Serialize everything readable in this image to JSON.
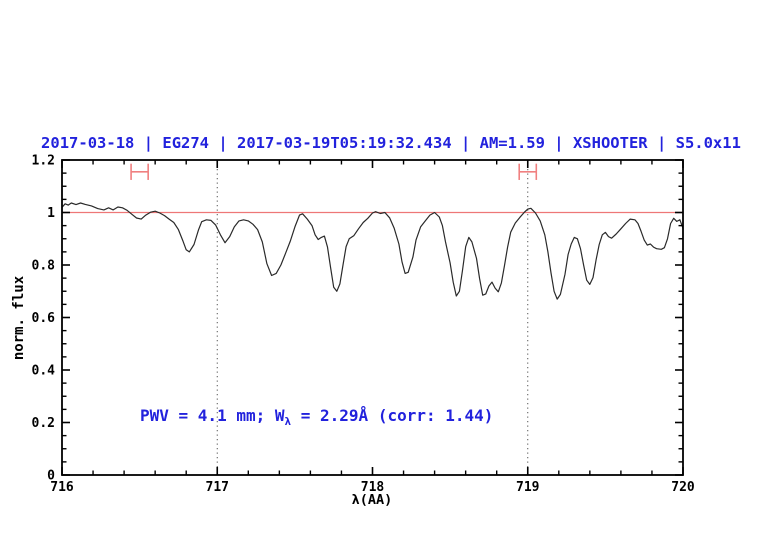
{
  "figure": {
    "title": "2017-03-18 | EG274 | 2017-03-19T05:19:32.434 | AM=1.59 | XSHOOTER | S5.0x11",
    "annotation": {
      "prefix": "PWV = 4.1 mm; W",
      "subscript": "λ",
      "suffix": " = 2.29Å (corr: 1.44)"
    }
  },
  "colors": {
    "title_blue": "#2222dd",
    "annotation_blue": "#2222dd",
    "reference_red": "#ee7777",
    "marker_red": "#f08080",
    "spectrum": "#2a2a2a",
    "frame": "#000000",
    "dotted_line": "#555555",
    "tick_label": "#000000"
  },
  "chart_data": {
    "type": "line",
    "title": "2017-03-18 | EG274 | 2017-03-19T05:19:32.434 | AM=1.59 | XSHOOTER | S5.0x11",
    "xlabel": "λ(AA)",
    "ylabel": "norm. flux",
    "xlim": [
      716,
      720
    ],
    "ylim": [
      0,
      1.2
    ],
    "grid": "off",
    "legend": "none",
    "x_ticks": {
      "major": [
        {
          "v": 716,
          "label": "716"
        },
        {
          "v": 717,
          "label": "717"
        },
        {
          "v": 718,
          "label": "718"
        },
        {
          "v": 719,
          "label": "719"
        },
        {
          "v": 720,
          "label": "720"
        }
      ],
      "minor_step": 0.2
    },
    "y_ticks": {
      "major": [
        {
          "v": 0,
          "label": "0"
        },
        {
          "v": 0.2,
          "label": "0.2"
        },
        {
          "v": 0.4,
          "label": "0.4"
        },
        {
          "v": 0.6,
          "label": "0.6"
        },
        {
          "v": 0.8,
          "label": "0.8"
        },
        {
          "v": 1,
          "label": "1"
        },
        {
          "v": 1.2,
          "label": "1.2"
        }
      ],
      "minor_step": 0.05
    },
    "reference_lines": {
      "horizontal": [
        {
          "y": 1.0
        }
      ],
      "vertical_dotted": [
        {
          "x": 717
        },
        {
          "x": 719
        }
      ]
    },
    "range_markers": [
      {
        "x_center": 716.5,
        "x_half_width": 0.055,
        "y": 1.155,
        "cap_half_height": 0.031
      },
      {
        "x_center": 719.0,
        "x_half_width": 0.055,
        "y": 1.155,
        "cap_half_height": 0.031
      }
    ],
    "annotation_text": "PWV = 4.1 mm; Wλ = 2.29Å (corr: 1.44)",
    "series": [
      {
        "name": "normalized telluric spectrum",
        "points": [
          [
            716.0,
            1.02
          ],
          [
            716.02,
            1.033
          ],
          [
            716.04,
            1.028
          ],
          [
            716.06,
            1.036
          ],
          [
            716.09,
            1.03
          ],
          [
            716.12,
            1.036
          ],
          [
            716.15,
            1.031
          ],
          [
            716.19,
            1.025
          ],
          [
            716.23,
            1.015
          ],
          [
            716.27,
            1.01
          ],
          [
            716.3,
            1.018
          ],
          [
            716.33,
            1.01
          ],
          [
            716.36,
            1.021
          ],
          [
            716.39,
            1.018
          ],
          [
            716.42,
            1.008
          ],
          [
            716.45,
            0.993
          ],
          [
            716.48,
            0.979
          ],
          [
            716.51,
            0.975
          ],
          [
            716.54,
            0.99
          ],
          [
            716.57,
            1.001
          ],
          [
            716.6,
            1.005
          ],
          [
            716.63,
            0.998
          ],
          [
            716.66,
            0.988
          ],
          [
            716.69,
            0.975
          ],
          [
            716.72,
            0.962
          ],
          [
            716.75,
            0.935
          ],
          [
            716.78,
            0.89
          ],
          [
            716.8,
            0.858
          ],
          [
            716.82,
            0.85
          ],
          [
            716.85,
            0.878
          ],
          [
            716.88,
            0.935
          ],
          [
            716.9,
            0.965
          ],
          [
            716.93,
            0.972
          ],
          [
            716.96,
            0.97
          ],
          [
            716.99,
            0.952
          ],
          [
            717.02,
            0.915
          ],
          [
            717.05,
            0.885
          ],
          [
            717.08,
            0.908
          ],
          [
            717.11,
            0.945
          ],
          [
            717.14,
            0.968
          ],
          [
            717.17,
            0.972
          ],
          [
            717.2,
            0.968
          ],
          [
            717.23,
            0.955
          ],
          [
            717.26,
            0.935
          ],
          [
            717.29,
            0.888
          ],
          [
            717.32,
            0.805
          ],
          [
            717.35,
            0.76
          ],
          [
            717.38,
            0.768
          ],
          [
            717.41,
            0.8
          ],
          [
            717.44,
            0.845
          ],
          [
            717.47,
            0.89
          ],
          [
            717.5,
            0.945
          ],
          [
            717.53,
            0.99
          ],
          [
            717.55,
            0.995
          ],
          [
            717.58,
            0.975
          ],
          [
            717.61,
            0.95
          ],
          [
            717.63,
            0.915
          ],
          [
            717.65,
            0.897
          ],
          [
            717.67,
            0.905
          ],
          [
            717.69,
            0.91
          ],
          [
            717.71,
            0.868
          ],
          [
            717.73,
            0.79
          ],
          [
            717.75,
            0.715
          ],
          [
            717.77,
            0.7
          ],
          [
            717.79,
            0.728
          ],
          [
            717.81,
            0.8
          ],
          [
            717.83,
            0.87
          ],
          [
            717.85,
            0.9
          ],
          [
            717.88,
            0.912
          ],
          [
            717.91,
            0.938
          ],
          [
            717.94,
            0.962
          ],
          [
            717.97,
            0.978
          ],
          [
            718.0,
            0.998
          ],
          [
            718.02,
            1.003
          ],
          [
            718.05,
            0.996
          ],
          [
            718.08,
            1.0
          ],
          [
            718.11,
            0.98
          ],
          [
            718.14,
            0.94
          ],
          [
            718.17,
            0.88
          ],
          [
            718.19,
            0.812
          ],
          [
            718.21,
            0.768
          ],
          [
            718.23,
            0.772
          ],
          [
            718.26,
            0.83
          ],
          [
            718.28,
            0.895
          ],
          [
            718.31,
            0.945
          ],
          [
            718.34,
            0.968
          ],
          [
            718.37,
            0.99
          ],
          [
            718.4,
            1.0
          ],
          [
            718.43,
            0.983
          ],
          [
            718.45,
            0.95
          ],
          [
            718.47,
            0.888
          ],
          [
            718.5,
            0.808
          ],
          [
            718.52,
            0.735
          ],
          [
            718.54,
            0.682
          ],
          [
            718.56,
            0.7
          ],
          [
            718.58,
            0.78
          ],
          [
            718.6,
            0.87
          ],
          [
            718.62,
            0.905
          ],
          [
            718.64,
            0.888
          ],
          [
            718.67,
            0.825
          ],
          [
            718.69,
            0.748
          ],
          [
            718.71,
            0.685
          ],
          [
            718.73,
            0.69
          ],
          [
            718.75,
            0.72
          ],
          [
            718.77,
            0.735
          ],
          [
            718.79,
            0.712
          ],
          [
            718.81,
            0.698
          ],
          [
            718.83,
            0.732
          ],
          [
            718.85,
            0.798
          ],
          [
            718.87,
            0.868
          ],
          [
            718.89,
            0.925
          ],
          [
            718.92,
            0.96
          ],
          [
            718.95,
            0.982
          ],
          [
            718.98,
            1.002
          ],
          [
            719.0,
            1.013
          ],
          [
            719.02,
            1.016
          ],
          [
            719.05,
            0.998
          ],
          [
            719.08,
            0.968
          ],
          [
            719.11,
            0.915
          ],
          [
            719.13,
            0.85
          ],
          [
            719.15,
            0.77
          ],
          [
            719.17,
            0.7
          ],
          [
            719.19,
            0.67
          ],
          [
            719.21,
            0.688
          ],
          [
            719.24,
            0.765
          ],
          [
            719.26,
            0.84
          ],
          [
            719.28,
            0.88
          ],
          [
            719.3,
            0.905
          ],
          [
            719.32,
            0.9
          ],
          [
            719.34,
            0.862
          ],
          [
            719.36,
            0.8
          ],
          [
            719.38,
            0.742
          ],
          [
            719.4,
            0.726
          ],
          [
            719.42,
            0.752
          ],
          [
            719.44,
            0.82
          ],
          [
            719.46,
            0.878
          ],
          [
            719.48,
            0.915
          ],
          [
            719.5,
            0.924
          ],
          [
            719.52,
            0.908
          ],
          [
            719.54,
            0.902
          ],
          [
            719.57,
            0.918
          ],
          [
            719.6,
            0.938
          ],
          [
            719.63,
            0.958
          ],
          [
            719.66,
            0.975
          ],
          [
            719.69,
            0.972
          ],
          [
            719.71,
            0.958
          ],
          [
            719.73,
            0.928
          ],
          [
            719.75,
            0.895
          ],
          [
            719.77,
            0.876
          ],
          [
            719.79,
            0.88
          ],
          [
            719.81,
            0.868
          ],
          [
            719.83,
            0.862
          ],
          [
            719.86,
            0.86
          ],
          [
            719.88,
            0.866
          ],
          [
            719.9,
            0.9
          ],
          [
            719.92,
            0.958
          ],
          [
            719.94,
            0.978
          ],
          [
            719.96,
            0.966
          ],
          [
            719.98,
            0.972
          ],
          [
            720.0,
            0.94
          ]
        ]
      }
    ]
  }
}
